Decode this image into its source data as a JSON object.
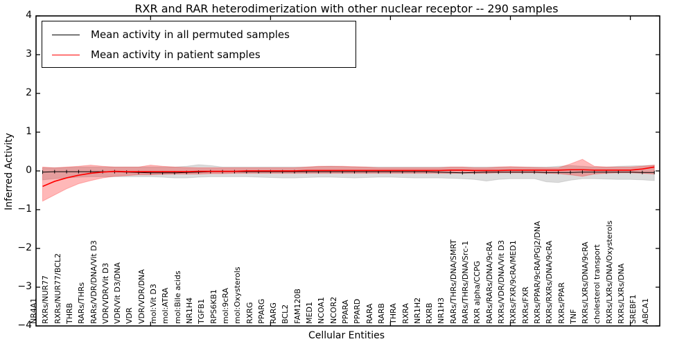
{
  "chart_data": {
    "type": "line",
    "title": "RXR and RAR heterodimerization with other nuclear receptor -- 290 samples",
    "xlabel": "Cellular Entities",
    "ylabel": "Inferred Activity",
    "ylim": [
      -4,
      4
    ],
    "yticks": [
      "4",
      "3",
      "2",
      "1",
      "0",
      "−1",
      "−2",
      "−3",
      "−4"
    ],
    "ytick_values": [
      4,
      3,
      2,
      1,
      0,
      -1,
      -2,
      -3,
      -4
    ],
    "grid": false,
    "legend_position": "upper left",
    "categories": [
      "NR4A1",
      "RXRs/NUR77",
      "RXRs/NUR77/BCL2",
      "THRB",
      "RARs/THRs",
      "RARs/VDR/DNA/Vit D3",
      "VDR/VDR/Vit D3",
      "VDR/Vit D3/DNA",
      "VDR",
      "VDR/VDR/DNA",
      "mol:Vit D3",
      "mol:ATRA",
      "mol:Bile acids",
      "NR1H4",
      "TGFB1",
      "RPS6KB1",
      "mol:9cRA",
      "mol:Oxysterols",
      "RXRG",
      "PPARG",
      "RARG",
      "BCL2",
      "FAM120B",
      "MED1",
      "NCOA1",
      "NCOR2",
      "PPARA",
      "PPARD",
      "RARA",
      "RARB",
      "THRA",
      "RXRA",
      "NR1H2",
      "RXRB",
      "NR1H3",
      "RARs/THRs/DNA/SMRT",
      "RARs/THRs/DNA/Src-1",
      "RXR alpha/CCPG",
      "RARs/RARs/DNA/9cRA",
      "RXRs/VDR/DNA/Vit D3",
      "RXRs/FXR/9cRA/MED1",
      "RXRs/FXR",
      "RXRs/PPAR/9cRA/PGJ2/DNA",
      "RXRs/RXRs/DNA/9cRA",
      "RXRs/PPAR",
      "TNF",
      "RXRs/LXRs/DNA/9cRA",
      "cholesterol transport",
      "RXRs/LXRs/DNA/Oxysterols",
      "RXRs/LXRs/DNA",
      "SREBF1",
      "ABCA1"
    ],
    "series": [
      {
        "name": "Mean activity in all permuted samples",
        "color": "#000000",
        "values": [
          -0.03,
          -0.02,
          -0.02,
          -0.02,
          -0.02,
          -0.02,
          -0.02,
          -0.03,
          -0.04,
          -0.05,
          -0.05,
          -0.05,
          -0.04,
          -0.03,
          -0.02,
          -0.02,
          -0.02,
          -0.02,
          -0.02,
          -0.02,
          -0.02,
          -0.02,
          -0.02,
          -0.02,
          -0.02,
          -0.02,
          -0.02,
          -0.02,
          -0.02,
          -0.02,
          -0.02,
          -0.02,
          -0.02,
          -0.03,
          -0.04,
          -0.05,
          -0.04,
          -0.03,
          -0.03,
          -0.03,
          -0.03,
          -0.03,
          -0.04,
          -0.04,
          -0.04,
          -0.03,
          -0.03,
          -0.03,
          -0.03,
          -0.03,
          -0.04,
          -0.04
        ]
      },
      {
        "name": "Mean activity in patient samples",
        "color": "#ff0000",
        "values": [
          -0.4,
          -0.27,
          -0.18,
          -0.11,
          -0.06,
          -0.03,
          -0.01,
          -0.02,
          -0.02,
          -0.02,
          -0.02,
          -0.02,
          -0.02,
          -0.01,
          -0.01,
          -0.01,
          -0.01,
          0.0,
          0.0,
          0.0,
          0.0,
          0.0,
          0.01,
          0.01,
          0.01,
          0.01,
          0.01,
          0.01,
          0.01,
          0.01,
          0.01,
          0.01,
          0.01,
          0.01,
          0.02,
          0.02,
          0.01,
          0.01,
          0.01,
          0.02,
          0.02,
          0.02,
          0.02,
          0.02,
          0.03,
          0.03,
          0.02,
          0.02,
          0.02,
          0.02,
          0.05,
          0.1
        ]
      }
    ],
    "bands": [
      {
        "name": "permuted-samples-range",
        "color": "#888888",
        "opacity": 0.3,
        "upper": [
          0.08,
          0.08,
          0.09,
          0.1,
          0.1,
          0.1,
          0.1,
          0.1,
          0.1,
          0.1,
          0.1,
          0.1,
          0.12,
          0.16,
          0.14,
          0.1,
          0.1,
          0.1,
          0.1,
          0.1,
          0.1,
          0.1,
          0.1,
          0.11,
          0.12,
          0.11,
          0.1,
          0.1,
          0.1,
          0.1,
          0.1,
          0.1,
          0.1,
          0.1,
          0.1,
          0.1,
          0.1,
          0.1,
          0.1,
          0.1,
          0.1,
          0.1,
          0.1,
          0.12,
          0.14,
          0.12,
          0.1,
          0.1,
          0.12,
          0.13,
          0.14,
          0.15
        ],
        "lower": [
          -0.23,
          -0.2,
          -0.18,
          -0.16,
          -0.15,
          -0.15,
          -0.15,
          -0.15,
          -0.15,
          -0.15,
          -0.16,
          -0.18,
          -0.18,
          -0.16,
          -0.15,
          -0.15,
          -0.15,
          -0.15,
          -0.16,
          -0.17,
          -0.18,
          -0.18,
          -0.17,
          -0.16,
          -0.16,
          -0.17,
          -0.18,
          -0.17,
          -0.16,
          -0.16,
          -0.17,
          -0.18,
          -0.18,
          -0.18,
          -0.19,
          -0.2,
          -0.22,
          -0.26,
          -0.22,
          -0.2,
          -0.2,
          -0.2,
          -0.28,
          -0.3,
          -0.24,
          -0.2,
          -0.2,
          -0.21,
          -0.22,
          -0.22,
          -0.23,
          -0.25
        ]
      },
      {
        "name": "patient-samples-range",
        "color": "#ff0000",
        "opacity": 0.28,
        "upper": [
          0.1,
          0.08,
          0.1,
          0.12,
          0.15,
          0.12,
          0.1,
          0.1,
          0.1,
          0.15,
          0.12,
          0.1,
          0.09,
          0.08,
          0.08,
          0.08,
          0.08,
          0.08,
          0.08,
          0.08,
          0.08,
          0.08,
          0.1,
          0.12,
          0.12,
          0.12,
          0.11,
          0.1,
          0.08,
          0.08,
          0.08,
          0.08,
          0.08,
          0.08,
          0.1,
          0.1,
          0.08,
          0.08,
          0.1,
          0.11,
          0.1,
          0.09,
          0.08,
          0.08,
          0.18,
          0.3,
          0.12,
          0.1,
          0.1,
          0.1,
          0.12,
          0.15
        ],
        "lower": [
          -0.78,
          -0.62,
          -0.46,
          -0.33,
          -0.25,
          -0.18,
          -0.14,
          -0.12,
          -0.1,
          -0.1,
          -0.09,
          -0.08,
          -0.08,
          -0.08,
          -0.07,
          -0.07,
          -0.06,
          -0.06,
          -0.06,
          -0.06,
          -0.06,
          -0.06,
          -0.06,
          -0.06,
          -0.06,
          -0.06,
          -0.06,
          -0.06,
          -0.06,
          -0.06,
          -0.06,
          -0.06,
          -0.06,
          -0.06,
          -0.06,
          -0.06,
          -0.06,
          -0.06,
          -0.05,
          -0.05,
          -0.05,
          -0.05,
          -0.06,
          -0.07,
          -0.1,
          -0.14,
          -0.08,
          -0.06,
          -0.05,
          -0.05,
          -0.06,
          -0.08
        ]
      }
    ]
  },
  "colors": {
    "frame": "#000000",
    "background": "#ffffff",
    "permuted_line": "#000000",
    "patient_line": "#ff0000"
  }
}
